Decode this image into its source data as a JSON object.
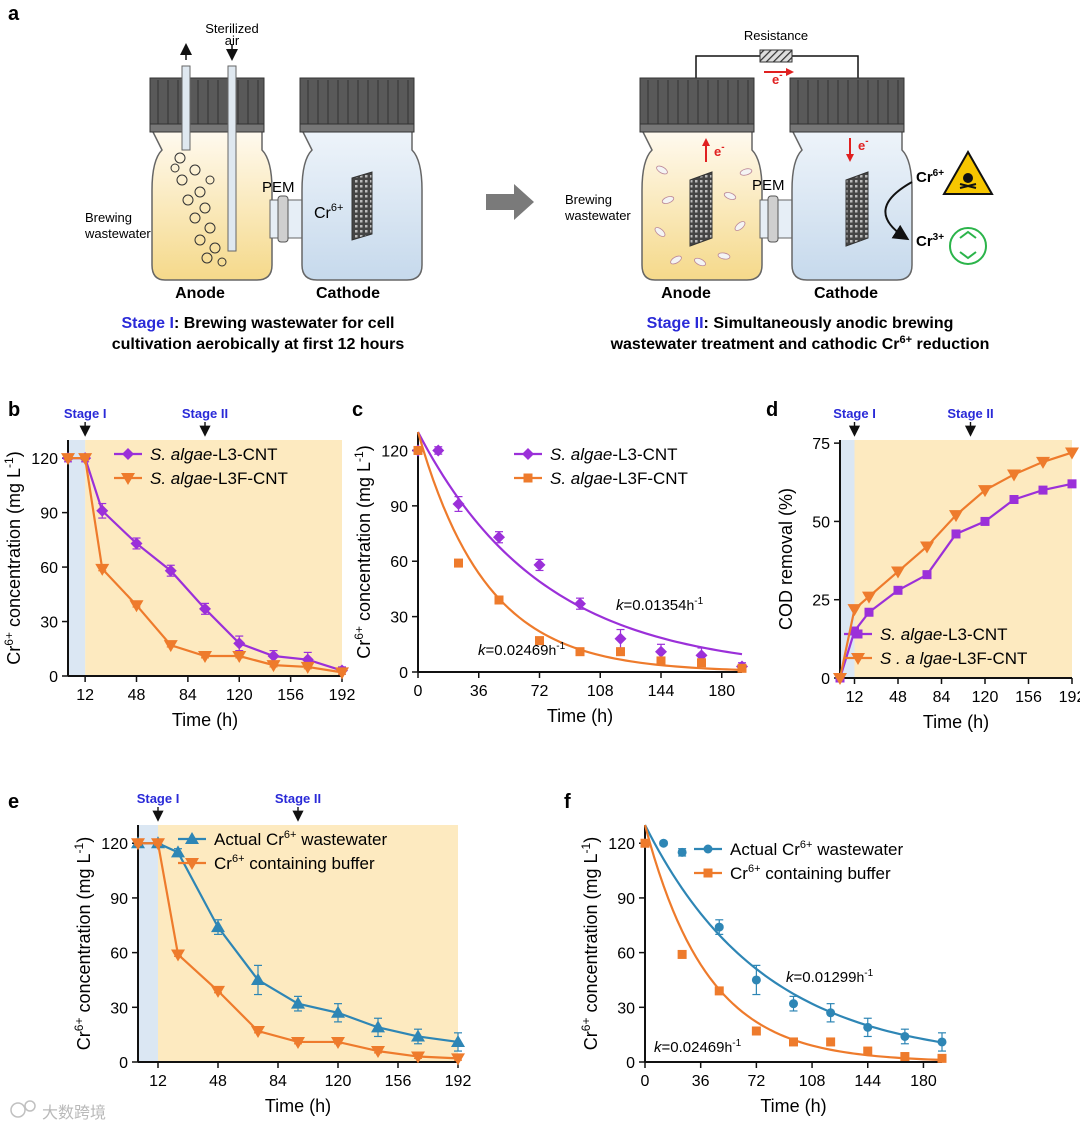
{
  "panel_a": {
    "label": "a",
    "stage1": {
      "anode": "Anode",
      "cathode": "Cathode",
      "pem": "PEM",
      "air_top": "Sterilized",
      "air_bottom": "air",
      "ww_top": "Brewing",
      "ww_bottom": "wastewater",
      "cr6": "Cr",
      "cr6_sup": "6+",
      "caption_tag": "Stage I",
      "caption_line1": ": Brewing wastewater for cell",
      "caption_line2": "cultivation aerobically at first 12 hours"
    },
    "stage2": {
      "resistance": "Resistance",
      "electron": "e",
      "electron_sup": "-",
      "anode": "Anode",
      "cathode": "Cathode",
      "pem": "PEM",
      "ww_top": "Brewing",
      "ww_bottom": "wastewater",
      "cr6": "Cr",
      "cr6_sup": "6+",
      "cr3": "Cr",
      "cr3_sup": "3+",
      "caption_tag": "Stage II",
      "caption_line1": ": Simultaneously anodic brewing",
      "caption_line2a": "wastewater treatment and cathodic Cr",
      "caption_line2_sup": "6+",
      "caption_line2b": " reduction"
    },
    "colors": {
      "anode_fill": "#f8e6b0",
      "cathode_fill": "#d6e4f2",
      "cap": "#555555",
      "arrow": "#7a7a7a",
      "red": "#e02020",
      "stage_blue": "#2a2ad8"
    }
  },
  "chart_data": [
    {
      "id": "b",
      "type": "line",
      "label": "b",
      "xlabel": "Time (h)",
      "ylabel_pre": "Cr",
      "ylabel_sup": "6+",
      "ylabel_post": " concentration (mg L",
      "ylabel_sup2": "-1",
      "ylabel_end": ")",
      "xlim": [
        0,
        192
      ],
      "ylim": [
        0,
        130
      ],
      "xticks": [
        12,
        48,
        84,
        120,
        156,
        192
      ],
      "yticks": [
        0,
        30,
        60,
        90,
        120
      ],
      "stage_labels": [
        "Stage I",
        "Stage II"
      ],
      "stage_x": [
        12,
        96
      ],
      "shade_stage1": [
        0,
        12
      ],
      "series": [
        {
          "name_italic": "S. algae",
          "name_rest": "-L3-CNT",
          "color": "#9b30d9",
          "marker": "diamond",
          "x": [
            0,
            12,
            24,
            48,
            72,
            96,
            120,
            144,
            168,
            192
          ],
          "y": [
            120,
            120,
            91,
            73,
            58,
            37,
            18,
            11,
            9,
            3
          ],
          "err": [
            2,
            2,
            4,
            3,
            3,
            3,
            4,
            3,
            4,
            2
          ]
        },
        {
          "name_italic": "S. algae",
          "name_rest": "-L3F-CNT",
          "color": "#ee7b2c",
          "marker": "tri-down",
          "x": [
            0,
            12,
            24,
            48,
            72,
            96,
            120,
            144,
            168,
            192
          ],
          "y": [
            120,
            120,
            59,
            39,
            17,
            11,
            11,
            6,
            5,
            2
          ],
          "err": [
            1,
            1,
            1,
            1,
            1,
            1,
            1,
            1,
            1,
            1
          ]
        }
      ]
    },
    {
      "id": "c",
      "type": "scatter",
      "label": "c",
      "xlabel": "Time (h)",
      "ylabel_pre": "Cr",
      "ylabel_sup": "6+",
      "ylabel_post": " concentration (mg L",
      "ylabel_sup2": "-1",
      "ylabel_end": ")",
      "xlim": [
        0,
        192
      ],
      "ylim": [
        0,
        130
      ],
      "xticks": [
        0,
        36,
        72,
        108,
        144,
        180
      ],
      "yticks": [
        0,
        30,
        60,
        90,
        120
      ],
      "series": [
        {
          "name_italic": "S. algae",
          "name_rest": "-L3-CNT",
          "color": "#9b30d9",
          "marker": "diamond",
          "x": [
            0,
            12,
            24,
            48,
            72,
            96,
            120,
            144,
            168,
            192
          ],
          "y": [
            120,
            120,
            91,
            73,
            58,
            37,
            18,
            11,
            9,
            3
          ],
          "err": [
            2,
            2,
            4,
            3,
            3,
            3,
            5,
            4,
            4,
            2
          ],
          "fit_k": 0.01354,
          "fit_y0": 130,
          "k_label": "k",
          "k_text": "=0.01354",
          "k_unit": "h",
          "k_sup": "-1"
        },
        {
          "name_italic": "S. algae",
          "name_rest": "-L3F-CNT",
          "color": "#ee7b2c",
          "marker": "square",
          "x": [
            0,
            24,
            48,
            72,
            96,
            120,
            144,
            168,
            192
          ],
          "y": [
            120,
            59,
            39,
            17,
            11,
            11,
            6,
            5,
            2
          ],
          "err": [
            1,
            1,
            1,
            1,
            1,
            1,
            1,
            1,
            1
          ],
          "fit_k": 0.02469,
          "fit_y0": 130,
          "k_label": "k",
          "k_text": "=0.02469",
          "k_unit": "h",
          "k_sup": "-1"
        }
      ]
    },
    {
      "id": "d",
      "type": "line",
      "label": "d",
      "xlabel": "Time (h)",
      "ylabel": "COD removal (%)",
      "xlim": [
        0,
        192
      ],
      "ylim": [
        0,
        76
      ],
      "xticks": [
        12,
        48,
        84,
        120,
        156,
        192
      ],
      "yticks": [
        0,
        25,
        50,
        75
      ],
      "stage_labels": [
        "Stage I",
        "Stage II"
      ],
      "stage_x": [
        12,
        108
      ],
      "shade_stage1": [
        0,
        12
      ],
      "series": [
        {
          "name_italic": "S. algae",
          "name_rest": "-L3-CNT",
          "color": "#9b30d9",
          "marker": "square",
          "x": [
            0,
            12,
            24,
            48,
            72,
            96,
            120,
            144,
            168,
            192
          ],
          "y": [
            0,
            15,
            21,
            28,
            33,
            46,
            50,
            57,
            60,
            62
          ]
        },
        {
          "name_italic": "S . a lgae",
          "name_rest": "-L3F-CNT",
          "color": "#ee7b2c",
          "marker": "tri-down",
          "x": [
            0,
            12,
            24,
            48,
            72,
            96,
            120,
            144,
            168,
            192
          ],
          "y": [
            0,
            22,
            26,
            34,
            42,
            52,
            60,
            65,
            69,
            72
          ]
        }
      ]
    },
    {
      "id": "e",
      "type": "line",
      "label": "e",
      "xlabel": "Time (h)",
      "ylabel_pre": "Cr",
      "ylabel_sup": "6+",
      "ylabel_post": " concentration (mg L",
      "ylabel_sup2": "-1",
      "ylabel_end": ")",
      "xlim": [
        0,
        192
      ],
      "ylim": [
        0,
        130
      ],
      "xticks": [
        12,
        48,
        84,
        120,
        156,
        192
      ],
      "yticks": [
        0,
        30,
        60,
        90,
        120
      ],
      "stage_labels": [
        "Stage I",
        "Stage II"
      ],
      "stage_x": [
        12,
        96
      ],
      "shade_stage1": [
        0,
        12
      ],
      "series": [
        {
          "name_pre": "Actual Cr",
          "name_sup": "6+",
          "name_post": "  wastewater",
          "color": "#2e86b5",
          "marker": "tri-up",
          "x": [
            0,
            12,
            24,
            48,
            72,
            96,
            120,
            144,
            168,
            192
          ],
          "y": [
            120,
            120,
            115,
            74,
            45,
            32,
            27,
            19,
            14,
            11
          ],
          "err": [
            1,
            1,
            2,
            4,
            8,
            4,
            5,
            5,
            4,
            5
          ]
        },
        {
          "name_pre": "Cr",
          "name_sup": "6+",
          "name_post": " containing buffer",
          "color": "#ee7b2c",
          "marker": "tri-down",
          "x": [
            0,
            12,
            24,
            48,
            72,
            96,
            120,
            144,
            168,
            192
          ],
          "y": [
            120,
            120,
            59,
            39,
            17,
            11,
            11,
            6,
            3,
            2
          ],
          "err": [
            1,
            1,
            1,
            1,
            1,
            1,
            1,
            1,
            1,
            1
          ]
        }
      ]
    },
    {
      "id": "f",
      "type": "scatter",
      "label": "f",
      "xlabel": "Time (h)",
      "ylabel_pre": "Cr",
      "ylabel_sup": "6+",
      "ylabel_post": " concentration (mg L",
      "ylabel_sup2": "-1",
      "ylabel_end": ")",
      "xlim": [
        0,
        192
      ],
      "ylim": [
        0,
        130
      ],
      "xticks": [
        0,
        36,
        72,
        108,
        144,
        180
      ],
      "yticks": [
        0,
        30,
        60,
        90,
        120
      ],
      "series": [
        {
          "name_pre": "Actual Cr",
          "name_sup": "6+",
          "name_post": "  wastewater",
          "color": "#2e86b5",
          "marker": "circle",
          "x": [
            0,
            12,
            24,
            48,
            72,
            96,
            120,
            144,
            168,
            192
          ],
          "y": [
            120,
            120,
            115,
            74,
            45,
            32,
            27,
            19,
            14,
            11
          ],
          "err": [
            1,
            1,
            2,
            4,
            8,
            4,
            5,
            5,
            4,
            5
          ],
          "fit_k": 0.01299,
          "fit_y0": 130,
          "k_label": "k",
          "k_text": "=0.01299",
          "k_unit": "h",
          "k_sup": "-1"
        },
        {
          "name_pre": "Cr",
          "name_sup": "6+",
          "name_post": " containing buffer",
          "color": "#ee7b2c",
          "marker": "square",
          "x": [
            0,
            24,
            48,
            72,
            96,
            120,
            144,
            168,
            192
          ],
          "y": [
            120,
            59,
            39,
            17,
            11,
            11,
            6,
            3,
            2
          ],
          "err": [
            1,
            1,
            1,
            1,
            1,
            1,
            1,
            1,
            1
          ],
          "fit_k": 0.02469,
          "fit_y0": 130,
          "k_label": "k",
          "k_text": "=0.02469",
          "k_unit": "h",
          "k_sup": "-1"
        }
      ]
    }
  ],
  "watermark": "大数跨境",
  "colors": {
    "stage1_shade": "#dbe7f3",
    "stage2_shade": "#fdeac0",
    "axis": "#111111",
    "stage_text": "#2a2ad8"
  }
}
